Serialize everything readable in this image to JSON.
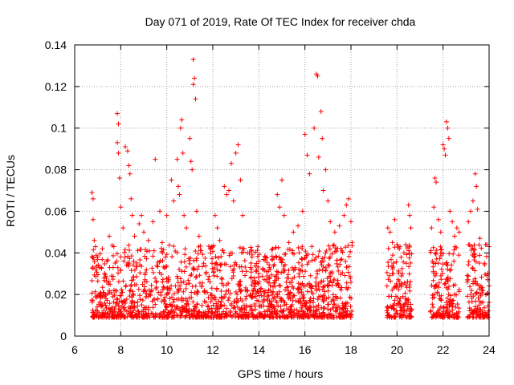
{
  "chart_data": {
    "type": "scatter",
    "title": "Day 071 of 2019, Rate Of TEC Index for receiver chda",
    "xlabel": "GPS time / hours",
    "ylabel": "ROTI / TECUs",
    "xlim": [
      6,
      24
    ],
    "ylim": [
      0,
      0.14
    ],
    "x_ticks": [
      6,
      8,
      10,
      12,
      14,
      16,
      18,
      20,
      22,
      24
    ],
    "y_ticks": [
      0,
      0.02,
      0.04,
      0.06,
      0.08,
      0.1,
      0.12,
      0.14
    ],
    "x_tick_labels": [
      "6",
      "8",
      "10",
      "12",
      "14",
      "16",
      "18",
      "20",
      "22",
      "24"
    ],
    "y_tick_labels": [
      "0",
      "0.02",
      "0.04",
      "0.06",
      "0.08",
      "0.1",
      "0.12",
      "0.14"
    ],
    "grid": true,
    "marker": "+",
    "marker_color": "#ff0000",
    "series": [
      {
        "name": "ROTI",
        "points": [
          [
            6.75,
            0.069
          ],
          [
            6.8,
            0.066
          ],
          [
            6.8,
            0.056
          ],
          [
            6.85,
            0.046
          ],
          [
            6.9,
            0.043
          ],
          [
            7.0,
            0.038
          ],
          [
            7.2,
            0.042
          ],
          [
            7.4,
            0.036
          ],
          [
            7.5,
            0.048
          ],
          [
            7.7,
            0.043
          ],
          [
            7.85,
            0.107
          ],
          [
            7.9,
            0.102
          ],
          [
            7.85,
            0.093
          ],
          [
            7.9,
            0.088
          ],
          [
            7.95,
            0.076
          ],
          [
            8.0,
            0.062
          ],
          [
            8.1,
            0.052
          ],
          [
            8.2,
            0.091
          ],
          [
            8.3,
            0.089
          ],
          [
            8.35,
            0.082
          ],
          [
            8.4,
            0.078
          ],
          [
            8.45,
            0.066
          ],
          [
            8.5,
            0.058
          ],
          [
            8.6,
            0.048
          ],
          [
            8.8,
            0.054
          ],
          [
            8.9,
            0.058
          ],
          [
            9.0,
            0.05
          ],
          [
            9.2,
            0.046
          ],
          [
            9.5,
            0.085
          ],
          [
            9.4,
            0.055
          ],
          [
            9.7,
            0.06
          ],
          [
            9.8,
            0.045
          ],
          [
            10.0,
            0.058
          ],
          [
            10.2,
            0.075
          ],
          [
            10.3,
            0.065
          ],
          [
            10.45,
            0.085
          ],
          [
            10.5,
            0.072
          ],
          [
            10.55,
            0.068
          ],
          [
            10.6,
            0.1
          ],
          [
            10.65,
            0.104
          ],
          [
            10.7,
            0.088
          ],
          [
            10.75,
            0.058
          ],
          [
            10.85,
            0.052
          ],
          [
            11.0,
            0.095
          ],
          [
            11.05,
            0.084
          ],
          [
            11.1,
            0.08
          ],
          [
            11.15,
            0.133
          ],
          [
            11.2,
            0.124
          ],
          [
            11.15,
            0.121
          ],
          [
            11.25,
            0.114
          ],
          [
            11.3,
            0.06
          ],
          [
            11.4,
            0.048
          ],
          [
            11.6,
            0.035
          ],
          [
            11.7,
            0.03
          ],
          [
            12.1,
            0.058
          ],
          [
            12.2,
            0.052
          ],
          [
            12.3,
            0.046
          ],
          [
            12.5,
            0.072
          ],
          [
            12.6,
            0.068
          ],
          [
            12.7,
            0.07
          ],
          [
            12.8,
            0.083
          ],
          [
            12.9,
            0.065
          ],
          [
            13.0,
            0.088
          ],
          [
            13.1,
            0.092
          ],
          [
            13.2,
            0.075
          ],
          [
            13.3,
            0.058
          ],
          [
            13.5,
            0.04
          ],
          [
            13.7,
            0.038
          ],
          [
            14.0,
            0.036
          ],
          [
            14.3,
            0.038
          ],
          [
            14.6,
            0.042
          ],
          [
            14.8,
            0.068
          ],
          [
            14.9,
            0.062
          ],
          [
            15.0,
            0.075
          ],
          [
            15.1,
            0.058
          ],
          [
            15.3,
            0.045
          ],
          [
            15.5,
            0.05
          ],
          [
            15.7,
            0.053
          ],
          [
            15.9,
            0.06
          ],
          [
            16.0,
            0.097
          ],
          [
            16.1,
            0.087
          ],
          [
            16.2,
            0.078
          ],
          [
            16.4,
            0.1
          ],
          [
            16.5,
            0.126
          ],
          [
            16.55,
            0.125
          ],
          [
            16.6,
            0.086
          ],
          [
            16.7,
            0.108
          ],
          [
            16.75,
            0.095
          ],
          [
            16.8,
            0.07
          ],
          [
            16.9,
            0.08
          ],
          [
            17.0,
            0.065
          ],
          [
            17.1,
            0.055
          ],
          [
            17.3,
            0.05
          ],
          [
            17.5,
            0.053
          ],
          [
            17.7,
            0.058
          ],
          [
            17.8,
            0.063
          ],
          [
            17.9,
            0.066
          ],
          [
            18.0,
            0.055
          ],
          [
            18.05,
            0.045
          ],
          [
            19.6,
            0.052
          ],
          [
            19.7,
            0.05
          ],
          [
            19.8,
            0.045
          ],
          [
            19.9,
            0.056
          ],
          [
            20.0,
            0.044
          ],
          [
            20.1,
            0.042
          ],
          [
            20.3,
            0.04
          ],
          [
            20.5,
            0.063
          ],
          [
            20.55,
            0.058
          ],
          [
            20.6,
            0.052
          ],
          [
            21.5,
            0.052
          ],
          [
            21.6,
            0.062
          ],
          [
            21.65,
            0.076
          ],
          [
            21.7,
            0.074
          ],
          [
            21.8,
            0.056
          ],
          [
            21.9,
            0.05
          ],
          [
            22.0,
            0.092
          ],
          [
            22.05,
            0.09
          ],
          [
            22.1,
            0.087
          ],
          [
            22.15,
            0.103
          ],
          [
            22.2,
            0.1
          ],
          [
            22.25,
            0.095
          ],
          [
            22.3,
            0.06
          ],
          [
            22.4,
            0.055
          ],
          [
            22.5,
            0.048
          ],
          [
            22.6,
            0.052
          ],
          [
            22.7,
            0.05
          ],
          [
            23.1,
            0.055
          ],
          [
            23.2,
            0.06
          ],
          [
            23.3,
            0.065
          ],
          [
            23.4,
            0.078
          ],
          [
            23.45,
            0.072
          ],
          [
            23.5,
            0.061
          ],
          [
            23.6,
            0.047
          ],
          [
            23.8,
            0.035
          ],
          [
            23.9,
            0.044
          ],
          [
            24.0,
            0.043
          ]
        ]
      }
    ]
  }
}
